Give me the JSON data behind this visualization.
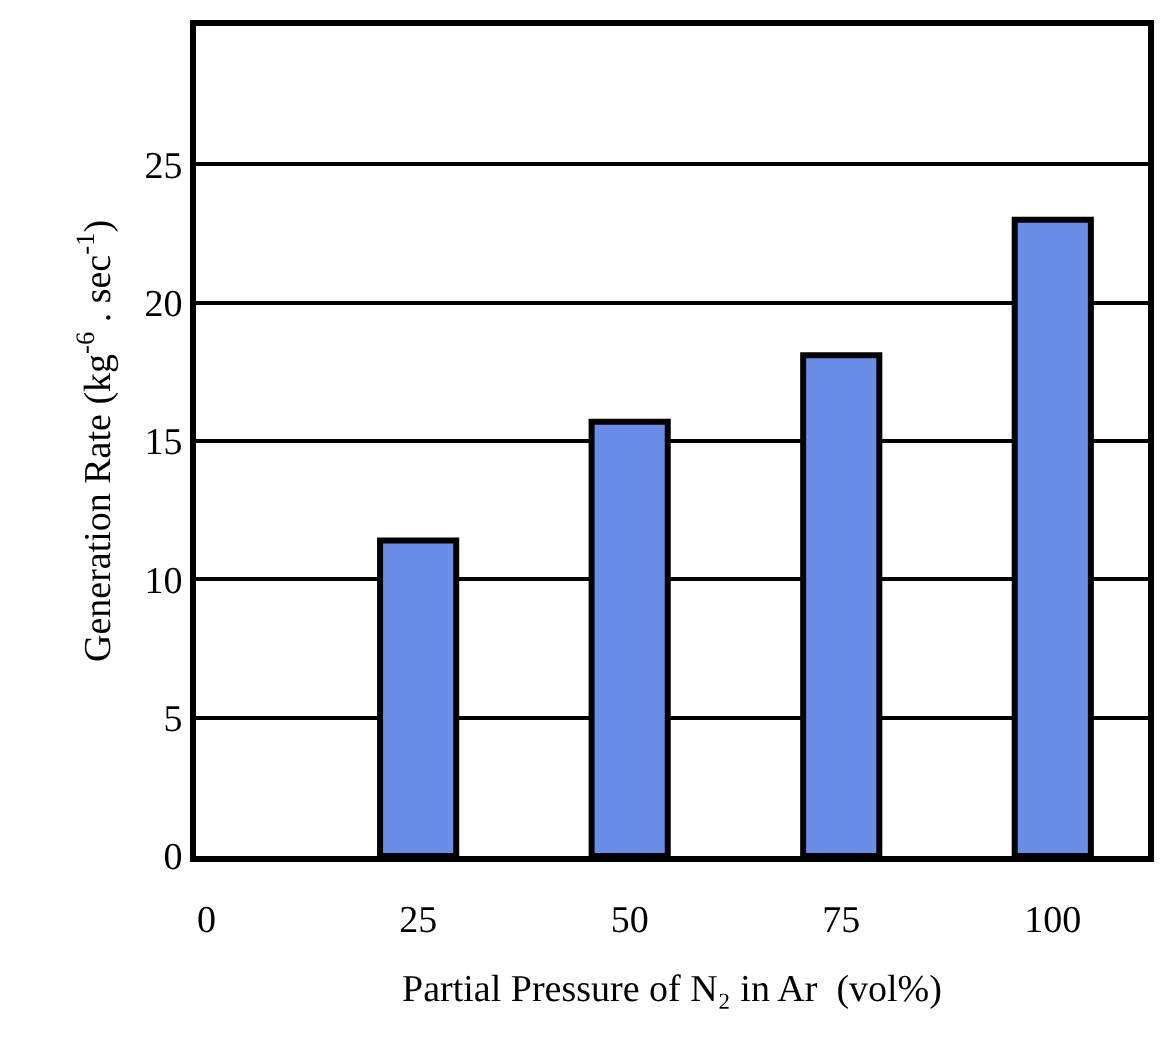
{
  "chart_data": {
    "type": "bar",
    "xlabel": "Partial Pressure of N₂ in Ar  (vol%)",
    "ylabel": "Generation Rate (kg$^{-6}$ . sec$^{-1}$)",
    "categories": [
      "0",
      "25",
      "50",
      "75",
      "100"
    ],
    "values": [
      null,
      11.4,
      15.7,
      18.1,
      23.0
    ],
    "color": "#6a8ee8",
    "ylim": [
      0,
      30
    ],
    "yticks": [
      0,
      5,
      10,
      15,
      20,
      25
    ],
    "grid": "y",
    "legend": false
  }
}
